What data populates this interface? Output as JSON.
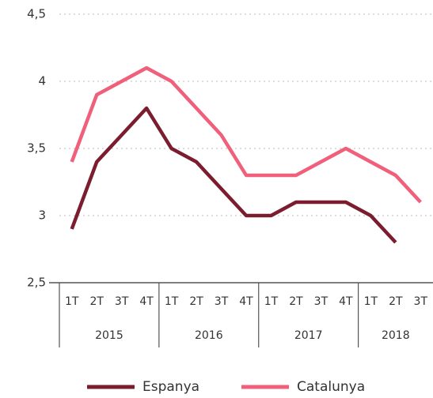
{
  "chart_data": {
    "type": "line",
    "categories": [
      "1T",
      "2T",
      "3T",
      "4T",
      "1T",
      "2T",
      "3T",
      "4T",
      "1T",
      "2T",
      "3T",
      "4T",
      "1T",
      "2T",
      "3T"
    ],
    "x_groups": [
      "2015",
      "2016",
      "2017",
      "2018"
    ],
    "series": [
      {
        "name": "Espanya",
        "color": "#7b1d2e",
        "values": [
          2.9,
          3.4,
          3.6,
          3.8,
          3.5,
          3.4,
          3.2,
          3.0,
          3.0,
          3.1,
          3.1,
          3.1,
          3.0,
          2.8,
          null
        ]
      },
      {
        "name": "Catalunya",
        "color": "#f0607a",
        "values": [
          3.4,
          3.9,
          4.0,
          4.1,
          4.0,
          3.8,
          3.6,
          3.3,
          3.3,
          3.3,
          3.4,
          3.5,
          3.4,
          3.3,
          3.1
        ]
      }
    ],
    "ylim": [
      2.5,
      4.5
    ],
    "yticks": [
      {
        "value": 2.5,
        "label": "2,5"
      },
      3,
      {
        "value": 3.5,
        "label": "3,5"
      },
      4,
      {
        "value": 4.5,
        "label": "4,5"
      }
    ],
    "grid": true,
    "legend": "bottom"
  }
}
